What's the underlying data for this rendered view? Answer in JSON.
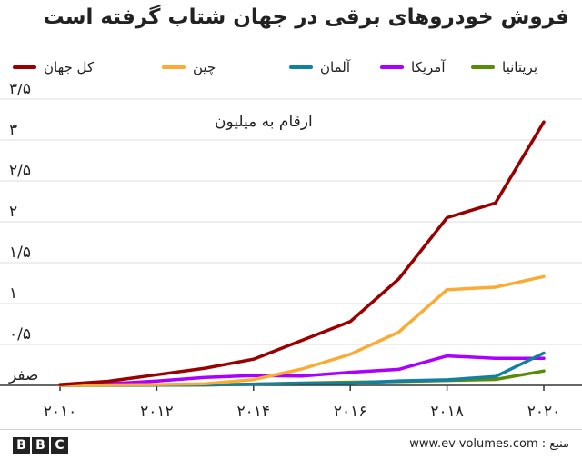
{
  "chart_data": {
    "type": "line",
    "title": "فروش خودروهای برقی در جهان شتاب گرفته است",
    "annotation": "ارقام به میلیون",
    "x": [
      2010,
      2011,
      2012,
      2013,
      2014,
      2015,
      2016,
      2017,
      2018,
      2019,
      2020
    ],
    "x_tick_values": [
      2010,
      2012,
      2014,
      2016,
      2018,
      2020
    ],
    "x_tick_labels": [
      "۲۰۱۰",
      "۲۰۱۲",
      "۲۰۱۴",
      "۲۰۱۶",
      "۲۰۱۸",
      "۲۰۲۰"
    ],
    "y_tick_values": [
      0,
      0.5,
      1,
      1.5,
      2,
      2.5,
      3,
      3.5
    ],
    "y_tick_labels": [
      "صفر",
      "۰/۵",
      "۱",
      "۱/۵",
      "۲",
      "۲/۵",
      "۳",
      "۳/۵"
    ],
    "ylim": [
      0,
      3.5
    ],
    "xlim": [
      2010,
      2020
    ],
    "grid": true,
    "legend_position": "top",
    "series": [
      {
        "name": "کل جهان",
        "color": "#990000",
        "values": [
          0.01,
          0.05,
          0.13,
          0.21,
          0.32,
          0.55,
          0.78,
          1.3,
          2.05,
          2.23,
          3.22
        ]
      },
      {
        "name": "چین",
        "color": "#FAAB36",
        "values": [
          0.0,
          0.005,
          0.01,
          0.02,
          0.07,
          0.2,
          0.38,
          0.65,
          1.17,
          1.2,
          1.33
        ]
      },
      {
        "name": "آلمان",
        "color": "#1380A1",
        "values": [
          0.0,
          0.001,
          0.003,
          0.006,
          0.013,
          0.024,
          0.025,
          0.055,
          0.068,
          0.108,
          0.395
        ]
      },
      {
        "name": "آمریکا",
        "color": "#AA00FF",
        "values": [
          0.001,
          0.018,
          0.053,
          0.097,
          0.12,
          0.114,
          0.16,
          0.195,
          0.36,
          0.33,
          0.33
        ]
      },
      {
        "name": "بریتانیا",
        "color": "#588C07",
        "values": [
          0.0,
          0.001,
          0.003,
          0.004,
          0.015,
          0.028,
          0.038,
          0.047,
          0.06,
          0.072,
          0.176
        ]
      }
    ]
  },
  "footer": {
    "logo": [
      "B",
      "B",
      "C"
    ],
    "source": "منبع : www.ev-volumes.com"
  }
}
